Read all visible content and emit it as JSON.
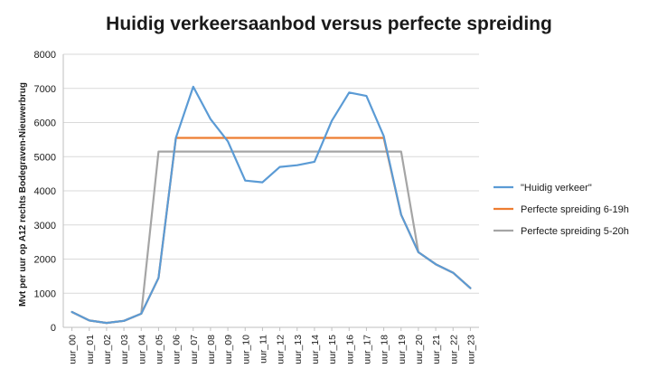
{
  "chart_data": {
    "type": "line",
    "title": "Huidig verkeersaanbod versus perfecte spreiding",
    "xlabel": "",
    "ylabel": "Mvt per uur op A12 rechts Bodegraven-Nieuwerbrug",
    "ylim": [
      0,
      8000
    ],
    "yticks": [
      "0",
      "1000",
      "2000",
      "3000",
      "4000",
      "5000",
      "6000",
      "7000",
      "8000"
    ],
    "grid": "horizontal",
    "legend_position": "right",
    "categories": [
      "uur_00",
      "uur_01",
      "uur_02",
      "uur_03",
      "uur_04",
      "uur_05",
      "uur_06",
      "uur_07",
      "uur_08",
      "uur_09",
      "uur_10",
      "uur_11",
      "uur_12",
      "uur_13",
      "uur_14",
      "uur_15",
      "uur_16",
      "uur_17",
      "uur_18",
      "uur_19",
      "uur_20",
      "uur_21",
      "uur_22",
      "uur_23"
    ],
    "series": [
      {
        "name": "\"Huidig verkeer\"",
        "color": "#5b9bd5",
        "values": [
          450,
          200,
          130,
          190,
          400,
          1450,
          5550,
          7050,
          6100,
          5450,
          4300,
          4250,
          4700,
          4750,
          4850,
          6050,
          6880,
          6780,
          5600,
          3300,
          2200,
          1850,
          1600,
          1150
        ]
      },
      {
        "name": "Perfecte spreiding 6-19h",
        "color": "#ed7d31",
        "values": [
          450,
          200,
          130,
          190,
          400,
          1450,
          5550,
          5550,
          5550,
          5550,
          5550,
          5550,
          5550,
          5550,
          5550,
          5550,
          5550,
          5550,
          5550,
          3300,
          2200,
          1850,
          1600,
          1150
        ]
      },
      {
        "name": "Perfecte spreiding 5-20h",
        "color": "#a5a5a5",
        "values": [
          450,
          200,
          130,
          190,
          400,
          5150,
          5150,
          5150,
          5150,
          5150,
          5150,
          5150,
          5150,
          5150,
          5150,
          5150,
          5150,
          5150,
          5150,
          5150,
          2200,
          1850,
          1600,
          1150
        ]
      }
    ]
  }
}
